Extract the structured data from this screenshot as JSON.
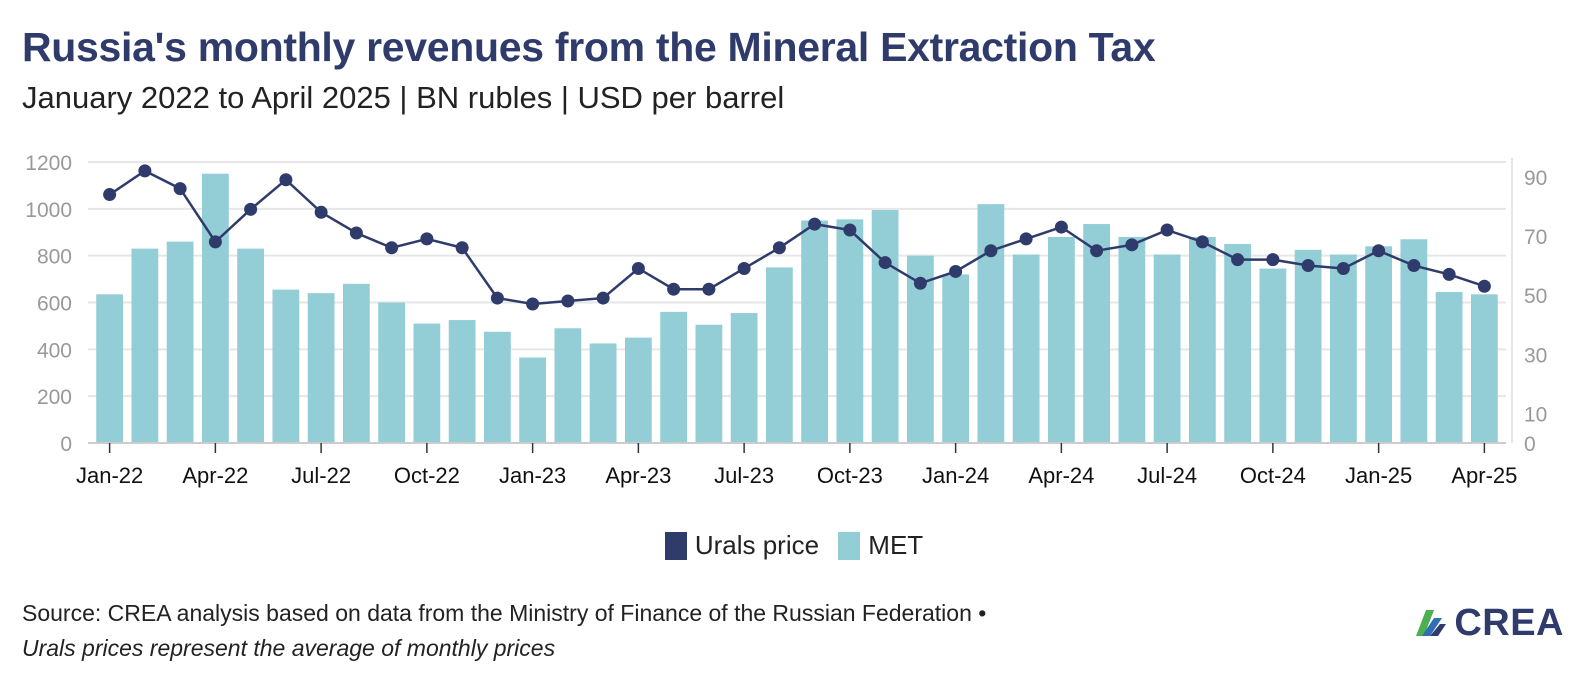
{
  "title": "Russia's monthly revenues from the Mineral Extraction Tax",
  "subtitle": "January 2022 to April 2025 | BN rubles | USD per barrel",
  "source": "Source: CREA analysis based on data from the Ministry of Finance of the Russian Federation •",
  "note": "Urals prices represent the average of monthly prices",
  "logo": {
    "text": "CREA"
  },
  "colors": {
    "bar": "#93cdd6",
    "line": "#2f3b6b",
    "grid": "#e6e6e6",
    "axis_text": "#999999"
  },
  "chart_data": {
    "type": "bar",
    "x_tick_labels": [
      "Jan-22",
      "Apr-22",
      "Jul-22",
      "Oct-22",
      "Jan-23",
      "Apr-23",
      "Jul-23",
      "Oct-23",
      "Jan-24",
      "Apr-24",
      "Jul-24",
      "Oct-24",
      "Jan-25",
      "Apr-25"
    ],
    "categories": [
      "Jan-22",
      "Feb-22",
      "Mar-22",
      "Apr-22",
      "May-22",
      "Jun-22",
      "Jul-22",
      "Aug-22",
      "Sep-22",
      "Oct-22",
      "Nov-22",
      "Dec-22",
      "Jan-23",
      "Feb-23",
      "Mar-23",
      "Apr-23",
      "May-23",
      "Jun-23",
      "Jul-23",
      "Aug-23",
      "Sep-23",
      "Oct-23",
      "Nov-23",
      "Dec-23",
      "Jan-24",
      "Feb-24",
      "Mar-24",
      "Apr-24",
      "May-24",
      "Jun-24",
      "Jul-24",
      "Aug-24",
      "Sep-24",
      "Oct-24",
      "Nov-24",
      "Dec-24",
      "Jan-25",
      "Feb-25",
      "Mar-25",
      "Apr-25"
    ],
    "y_left": {
      "ticks": [
        0,
        200,
        400,
        600,
        800,
        1000,
        1200
      ],
      "ylim": [
        0,
        1200
      ]
    },
    "y_right": {
      "ticks": [
        0,
        10,
        30,
        50,
        70,
        90
      ],
      "ylim": [
        0,
        95
      ]
    },
    "series": [
      {
        "name": "MET",
        "type": "bar",
        "axis": "left",
        "values": [
          635,
          830,
          860,
          1150,
          830,
          655,
          640,
          680,
          600,
          510,
          525,
          475,
          365,
          490,
          425,
          450,
          560,
          505,
          555,
          750,
          950,
          955,
          995,
          800,
          720,
          1020,
          805,
          880,
          935,
          880,
          805,
          880,
          850,
          745,
          825,
          805,
          840,
          870,
          645,
          635
        ]
      },
      {
        "name": "Urals price",
        "type": "line",
        "axis": "right",
        "values": [
          84,
          92,
          86,
          68,
          79,
          89,
          78,
          71,
          66,
          69,
          66,
          49,
          47,
          48,
          49,
          59,
          52,
          52,
          59,
          66,
          74,
          72,
          61,
          54,
          58,
          65,
          69,
          73,
          65,
          67,
          72,
          68,
          62,
          62,
          60,
          59,
          65,
          60,
          57,
          53
        ]
      }
    ],
    "legend": {
      "position": "bottom",
      "entries": [
        "Urals price",
        "MET"
      ]
    },
    "grid": true
  }
}
